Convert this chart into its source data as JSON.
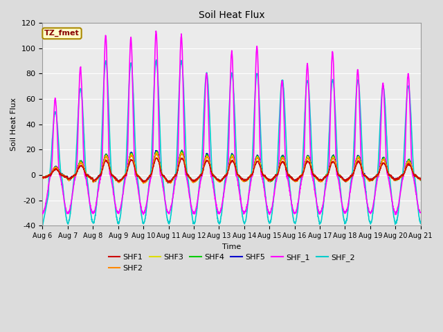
{
  "title": "Soil Heat Flux",
  "ylabel": "Soil Heat Flux",
  "xlabel": "Time",
  "annotation_text": "TZ_fmet",
  "annotation_bg": "#FFFFCC",
  "annotation_border": "#AA8800",
  "annotation_text_color": "#880000",
  "ylim": [
    -40,
    120
  ],
  "yticks": [
    -40,
    -20,
    0,
    20,
    40,
    60,
    80,
    100,
    120
  ],
  "xtick_labels": [
    "Aug 6",
    "Aug 7",
    "Aug 8",
    "Aug 9",
    "Aug 10",
    "Aug 11",
    "Aug 12",
    "Aug 13",
    "Aug 14",
    "Aug 15",
    "Aug 16",
    "Aug 17",
    "Aug 18",
    "Aug 19",
    "Aug 20",
    "Aug 21"
  ],
  "bg_color": "#DCDCDC",
  "plot_bg": "#EBEBEB",
  "series": {
    "SHF1": {
      "color": "#CC0000",
      "lw": 1.0
    },
    "SHF2": {
      "color": "#FF8800",
      "lw": 1.0
    },
    "SHF3": {
      "color": "#DDDD00",
      "lw": 1.0
    },
    "SHF4": {
      "color": "#00CC00",
      "lw": 1.0
    },
    "SHF5": {
      "color": "#0000CC",
      "lw": 1.0
    },
    "SHF_1": {
      "color": "#FF00FF",
      "lw": 1.2
    },
    "SHF_2": {
      "color": "#00CCCC",
      "lw": 1.2
    }
  },
  "n_days": 15,
  "pts_per_day": 144,
  "shf_peaks": [
    12,
    20,
    30,
    32,
    35,
    35,
    30,
    30,
    28,
    28,
    28,
    28,
    28,
    25,
    22
  ],
  "shf1_peaks": [
    60,
    85,
    110,
    108,
    113,
    110,
    80,
    97,
    101,
    75,
    87,
    97,
    83,
    72,
    80
  ],
  "shf2_peaks": [
    50,
    68,
    90,
    88,
    90,
    90,
    80,
    80,
    80,
    75,
    75,
    75,
    75,
    70,
    70
  ]
}
